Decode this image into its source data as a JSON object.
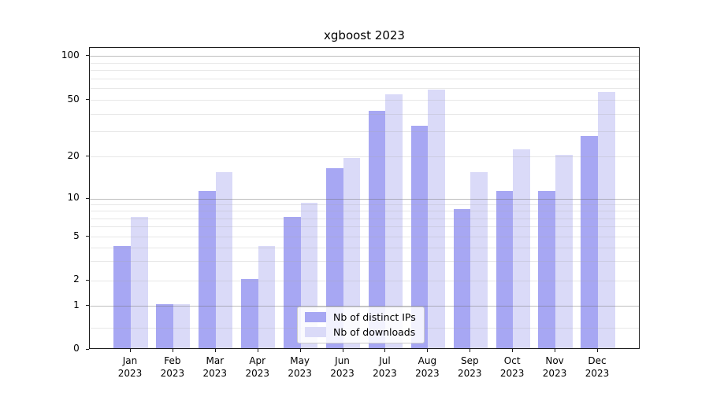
{
  "chart_data": {
    "type": "bar",
    "title": "xgboost 2023",
    "x_tick_months": [
      "Jan",
      "Feb",
      "Mar",
      "Apr",
      "May",
      "Jun",
      "Jul",
      "Aug",
      "Sep",
      "Oct",
      "Nov",
      "Dec"
    ],
    "x_tick_year": "2023",
    "series": [
      {
        "name": "Nb of distinct IPs",
        "color": "#a7a7f3",
        "values": [
          4,
          1,
          11,
          2,
          7,
          16,
          41,
          32,
          8,
          11,
          11,
          27
        ]
      },
      {
        "name": "Nb of downloads",
        "color": "#dadaf8",
        "values": [
          7,
          1,
          15,
          4,
          9,
          19,
          53,
          57,
          15,
          22,
          20,
          55
        ]
      }
    ],
    "y_axis": {
      "scale": "symlog",
      "tick_labels": [
        0,
        1,
        2,
        5,
        10,
        20,
        50,
        100
      ],
      "major_gridlines": [
        1,
        10,
        100
      ],
      "minor_gridlines": [
        0.5,
        2,
        3,
        4,
        5,
        6,
        7,
        8,
        9,
        20,
        30,
        40,
        50,
        60,
        70,
        80,
        90
      ],
      "range": [
        0,
        115
      ]
    },
    "legend": {
      "position": "lower-center-inside",
      "entries": [
        "Nb of distinct IPs",
        "Nb of downloads"
      ]
    },
    "grid": true
  }
}
